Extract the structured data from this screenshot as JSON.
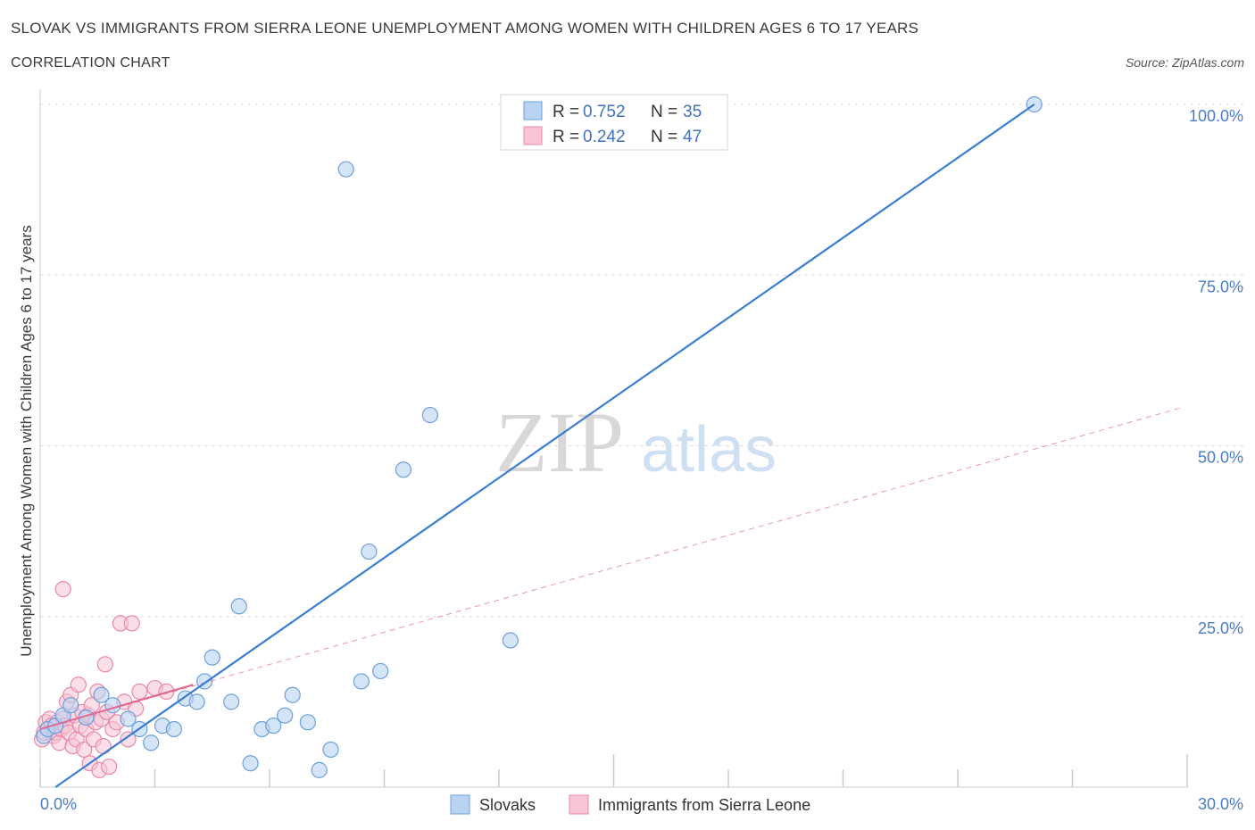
{
  "header": {
    "title": "SLOVAK VS IMMIGRANTS FROM SIERRA LEONE UNEMPLOYMENT AMONG WOMEN WITH CHILDREN AGES 6 TO 17 YEARS",
    "subtitle": "CORRELATION CHART",
    "source": "Source: ZipAtlas.com"
  },
  "watermark": {
    "zip": "ZIP",
    "atlas": "atlas"
  },
  "chart_data": {
    "type": "scatter",
    "title": "SLOVAK VS IMMIGRANTS FROM SIERRA LEONE UNEMPLOYMENT AMONG WOMEN WITH CHILDREN AGES 6 TO 17 YEARS",
    "xlabel": "",
    "ylabel": "Unemployment Among Women with Children Ages 6 to 17 years",
    "xlim": [
      0,
      30
    ],
    "ylim": [
      0,
      100
    ],
    "x_tick_labels": [
      "0.0%",
      "30.0%"
    ],
    "y_tick_labels": [
      {
        "value": 25,
        "label": "25.0%"
      },
      {
        "value": 50,
        "label": "50.0%"
      },
      {
        "value": 75,
        "label": "75.0%"
      },
      {
        "value": 100,
        "label": "100.0%"
      }
    ],
    "legend": {
      "r_label": "R = ",
      "n_label": "N = ",
      "entries": [
        {
          "name": "Slovaks",
          "r": "0.752",
          "n": "35"
        },
        {
          "name": "Immigrants from Sierra Leone",
          "r": "0.242",
          "n": "47"
        }
      ]
    },
    "colors": {
      "slovaks_fill": "#b9d4f3",
      "slovaks_stroke": "#6f9fdb",
      "slovaks_line": "#3b7dd0",
      "sierra_fill": "#f7c5d5",
      "sierra_stroke": "#e88aa8",
      "sierra_line": "#e06b92",
      "grid": "#dddddd",
      "tick_text": "#4a7cc7"
    },
    "series": [
      {
        "name": "Slovaks",
        "points": [
          [
            0.1,
            7.5
          ],
          [
            0.2,
            8.5
          ],
          [
            0.4,
            9.0
          ],
          [
            0.6,
            10.5
          ],
          [
            0.8,
            12.0
          ],
          [
            1.2,
            10.2
          ],
          [
            1.6,
            13.5
          ],
          [
            1.9,
            12.0
          ],
          [
            2.3,
            10.0
          ],
          [
            2.6,
            8.5
          ],
          [
            2.9,
            6.5
          ],
          [
            3.2,
            9.0
          ],
          [
            3.5,
            8.5
          ],
          [
            3.8,
            13.0
          ],
          [
            4.1,
            12.5
          ],
          [
            4.3,
            15.5
          ],
          [
            4.5,
            19.0
          ],
          [
            5.0,
            12.5
          ],
          [
            5.2,
            26.5
          ],
          [
            5.5,
            3.5
          ],
          [
            5.8,
            8.5
          ],
          [
            6.1,
            9.0
          ],
          [
            6.4,
            10.5
          ],
          [
            6.6,
            13.5
          ],
          [
            7.0,
            9.5
          ],
          [
            7.3,
            2.5
          ],
          [
            7.6,
            5.5
          ],
          [
            8.0,
            90.5
          ],
          [
            8.4,
            15.5
          ],
          [
            8.6,
            34.5
          ],
          [
            8.9,
            17.0
          ],
          [
            9.5,
            46.5
          ],
          [
            10.2,
            54.5
          ],
          [
            12.3,
            21.5
          ],
          [
            26.0,
            100.0
          ]
        ],
        "trend": {
          "x0": 0.4,
          "y0": 0.0,
          "x1": 26.0,
          "y1": 100.0
        }
      },
      {
        "name": "Immigrants from Sierra Leone",
        "points": [
          [
            0.05,
            7.0
          ],
          [
            0.1,
            8.0
          ],
          [
            0.15,
            9.5
          ],
          [
            0.2,
            8.5
          ],
          [
            0.25,
            10.0
          ],
          [
            0.3,
            9.0
          ],
          [
            0.35,
            7.5
          ],
          [
            0.4,
            8.0
          ],
          [
            0.45,
            9.5
          ],
          [
            0.5,
            6.5
          ],
          [
            0.55,
            8.5
          ],
          [
            0.6,
            10.0
          ],
          [
            0.65,
            9.0
          ],
          [
            0.7,
            12.5
          ],
          [
            0.75,
            8.0
          ],
          [
            0.8,
            13.5
          ],
          [
            0.85,
            6.0
          ],
          [
            0.9,
            10.5
          ],
          [
            0.95,
            7.0
          ],
          [
            1.0,
            15.0
          ],
          [
            1.05,
            9.0
          ],
          [
            1.1,
            11.0
          ],
          [
            1.15,
            5.5
          ],
          [
            1.2,
            8.5
          ],
          [
            1.25,
            10.5
          ],
          [
            1.3,
            3.5
          ],
          [
            1.35,
            12.0
          ],
          [
            1.4,
            7.0
          ],
          [
            1.45,
            9.5
          ],
          [
            1.5,
            14.0
          ],
          [
            1.55,
            2.5
          ],
          [
            1.6,
            10.0
          ],
          [
            1.65,
            6.0
          ],
          [
            1.7,
            18.0
          ],
          [
            1.75,
            11.0
          ],
          [
            1.8,
            3.0
          ],
          [
            1.9,
            8.5
          ],
          [
            2.0,
            9.5
          ],
          [
            2.1,
            24.0
          ],
          [
            2.2,
            12.5
          ],
          [
            2.3,
            7.0
          ],
          [
            2.4,
            24.0
          ],
          [
            2.5,
            11.5
          ],
          [
            2.6,
            14.0
          ],
          [
            3.0,
            14.5
          ],
          [
            3.3,
            14.0
          ],
          [
            0.6,
            29.0
          ]
        ],
        "trend": {
          "x0": 0.0,
          "y0": 8.5,
          "x1": 4.0,
          "y1": 15.0
        },
        "trend_extended": {
          "x0": 0.0,
          "y0": 8.5,
          "x1": 29.8,
          "y1": 55.5
        }
      }
    ]
  }
}
